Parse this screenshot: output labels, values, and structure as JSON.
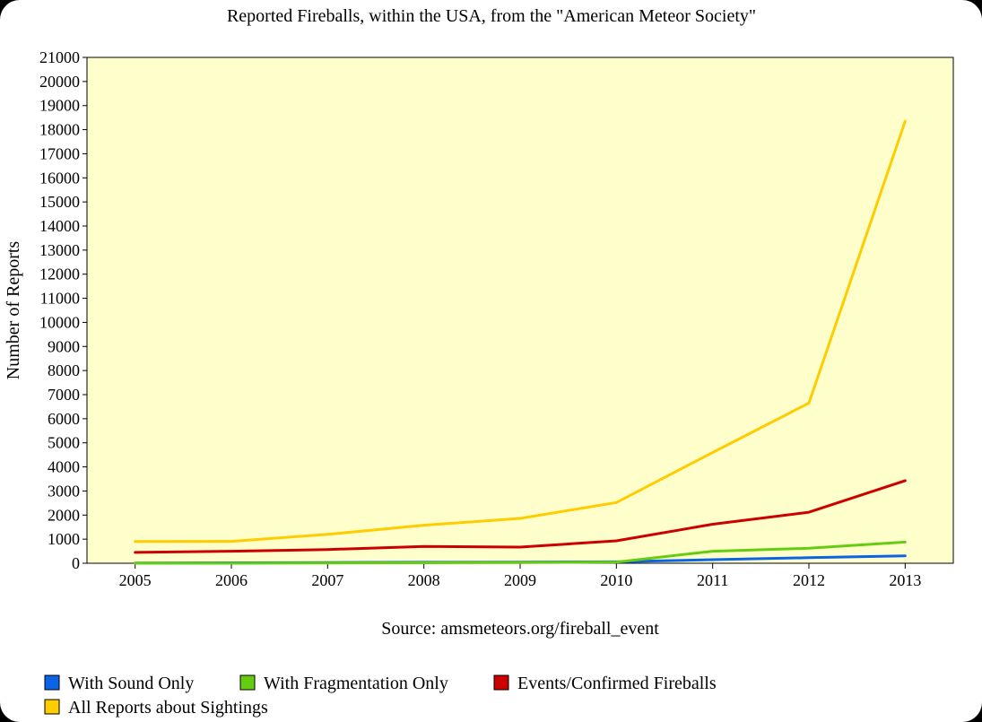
{
  "chart_data": {
    "type": "line",
    "title": "Reported Fireballs, within the USA, from the \"American Meteor Society\"",
    "xlabel": "",
    "ylabel": "Number of Reports",
    "source": "Source: amsmeteors.org/fireball_event",
    "x": [
      "2005",
      "2006",
      "2007",
      "2008",
      "2009",
      "2010",
      "2011",
      "2012",
      "2013"
    ],
    "ylim": [
      0,
      21000
    ],
    "yticks": [
      "0",
      "1000",
      "2000",
      "3000",
      "4000",
      "5000",
      "6000",
      "7000",
      "8000",
      "9000",
      "10000",
      "11000",
      "12000",
      "13000",
      "14000",
      "15000",
      "16000",
      "17000",
      "18000",
      "19000",
      "20000",
      "21000"
    ],
    "grid": false,
    "legend_position": "bottom",
    "plot_background": "#ffffcc",
    "series": [
      {
        "name": "With Sound Only",
        "color": "#0b63e5",
        "values": [
          10,
          20,
          30,
          40,
          50,
          60,
          150,
          230,
          310
        ]
      },
      {
        "name": "With Fragmentation Only",
        "color": "#66cc11",
        "values": [
          0,
          0,
          10,
          20,
          30,
          50,
          500,
          620,
          880
        ]
      },
      {
        "name": "Events/Confirmed Fireballs",
        "color": "#cc0000",
        "values": [
          450,
          500,
          570,
          700,
          670,
          930,
          1620,
          2120,
          3430
        ]
      },
      {
        "name": "All Reports about Sightings",
        "color": "#ffcc00",
        "values": [
          900,
          910,
          1200,
          1580,
          1860,
          2520,
          4600,
          6650,
          18350
        ]
      }
    ]
  }
}
